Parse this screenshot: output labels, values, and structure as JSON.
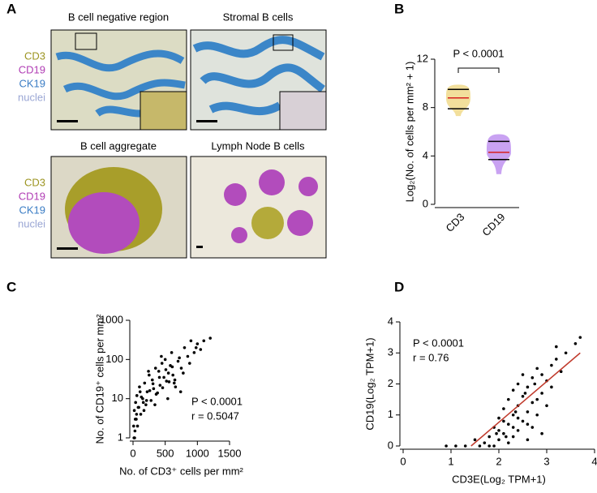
{
  "panel_labels": [
    "A",
    "B",
    "C",
    "D"
  ],
  "panel_a": {
    "tiles": [
      {
        "title": "B cell negative region"
      },
      {
        "title": "Stromal B cells"
      },
      {
        "title": "B cell aggregate"
      },
      {
        "title": "Lymph Node B cells"
      }
    ],
    "legends": [
      {
        "items": [
          {
            "text": "CD3",
            "color": "#9c9420"
          },
          {
            "text": "CD19",
            "color": "#b03cb4"
          },
          {
            "text": "CK19",
            "color": "#3a7cc4"
          },
          {
            "text": "nuclei",
            "color": "#9aa6d4"
          }
        ]
      },
      {
        "items": [
          {
            "text": "CD3",
            "color": "#9c9420"
          },
          {
            "text": "CD19",
            "color": "#b03cb4"
          },
          {
            "text": "CK19",
            "color": "#3a7cc4"
          },
          {
            "text": "nuclei",
            "color": "#9aa6d4"
          }
        ]
      }
    ]
  },
  "chart_data": [
    {
      "type": "violin",
      "ylabel": "Log₂(No. of cells per mm² + 1)",
      "annotation": "P < 0.0001",
      "categories": [
        "CD3",
        "CD19"
      ],
      "series": [
        {
          "color": "#f2df9c",
          "min": 7.3,
          "q1": 7.9,
          "median": 8.8,
          "q3": 9.5,
          "max": 9.9
        },
        {
          "color": "#c9a2f2",
          "min": 2.5,
          "q1": 3.7,
          "median": 4.3,
          "q3": 5.2,
          "max": 5.8
        }
      ],
      "median_color": "#d62020",
      "ylim": [
        0,
        12
      ],
      "yticks": [
        0,
        4,
        8,
        12
      ]
    },
    {
      "type": "scatter",
      "log_y": true,
      "xlabel": "No. of CD3⁺ cells per mm²",
      "ylabel": "No. of CD19⁺ cells per mm²",
      "annotations": [
        "P < 0.0001",
        "r = 0.5047"
      ],
      "color": "#000000",
      "x": [
        10,
        20,
        30,
        40,
        50,
        60,
        80,
        100,
        120,
        150,
        180,
        200,
        220,
        250,
        280,
        300,
        320,
        350,
        380,
        400,
        420,
        450,
        480,
        500,
        520,
        550,
        580,
        600,
        620,
        650,
        700,
        750,
        800,
        850,
        900,
        950,
        1000,
        1050,
        1100,
        1200,
        15,
        35,
        70,
        90,
        130,
        170,
        210,
        260,
        310,
        360,
        410,
        460,
        510,
        560,
        610,
        660,
        720,
        780,
        880,
        980,
        25,
        55,
        110,
        160,
        240,
        340,
        440,
        540,
        640,
        740
      ],
      "values": [
        2,
        5,
        1.5,
        8,
        3,
        12,
        6,
        20,
        4,
        10,
        25,
        7,
        15,
        40,
        9,
        30,
        18,
        60,
        14,
        50,
        22,
        80,
        35,
        100,
        28,
        45,
        70,
        150,
        40,
        30,
        90,
        60,
        200,
        120,
        300,
        150,
        250,
        180,
        300,
        350,
        1,
        3,
        2,
        6,
        11,
        5,
        9,
        16,
        24,
        13,
        35,
        19,
        55,
        27,
        65,
        20,
        110,
        45,
        80,
        200,
        1,
        4,
        15,
        8,
        50,
        7,
        120,
        10,
        25,
        15
      ],
      "xlim": [
        0,
        1500
      ],
      "xticks": [
        0,
        500,
        1000,
        1500
      ],
      "ylim": [
        1,
        1000
      ],
      "yticks": [
        1,
        10,
        100,
        1000
      ]
    },
    {
      "type": "scatter",
      "xlabel": "CD3E(Log₂ TPM+1)",
      "ylabel": "CD19(Log₂ TPM+1)",
      "annotations": [
        "P < 0.0001",
        "r = 0.76"
      ],
      "color": "#000000",
      "x": [
        0.9,
        1.1,
        1.3,
        1.6,
        1.7,
        1.8,
        1.9,
        1.9,
        2.0,
        2.0,
        2.1,
        2.1,
        2.2,
        2.2,
        2.2,
        2.3,
        2.3,
        2.3,
        2.4,
        2.4,
        2.4,
        2.5,
        2.5,
        2.5,
        2.6,
        2.6,
        2.6,
        2.7,
        2.7,
        2.7,
        2.8,
        2.8,
        2.9,
        2.9,
        3.0,
        3.0,
        3.1,
        3.2,
        3.3,
        3.4,
        3.6,
        3.7,
        1.5,
        1.8,
        2.0,
        2.1,
        2.3,
        2.4,
        2.6,
        2.8,
        2.9,
        3.1,
        1.95,
        2.15,
        2.35,
        2.55,
        2.75,
        3.2
      ],
      "values": [
        0,
        0,
        0,
        0,
        0.1,
        0.3,
        0,
        0.6,
        0.2,
        0.9,
        0.4,
        1.2,
        0.1,
        0.7,
        1.5,
        0.3,
        1.0,
        1.8,
        0.5,
        1.3,
        2.0,
        0.8,
        1.6,
        2.3,
        0.2,
        1.1,
        1.9,
        0.6,
        1.4,
        2.2,
        1.0,
        2.5,
        1.7,
        0.4,
        2.1,
        1.3,
        2.6,
        2.8,
        2.4,
        3.0,
        3.3,
        3.5,
        0.2,
        0,
        0.5,
        0.8,
        0.6,
        0.9,
        0.7,
        1.5,
        2.3,
        1.9,
        0.4,
        0.3,
        1.1,
        1.7,
        2.0,
        3.2
      ],
      "fit": {
        "x": [
          1.42,
          3.7
        ],
        "y": [
          0,
          3
        ],
        "color": "#c0392b"
      },
      "xlim": [
        0,
        4
      ],
      "xticks": [
        0,
        1,
        2,
        3,
        4
      ],
      "ylim": [
        0,
        4
      ],
      "yticks": [
        0,
        1,
        2,
        3,
        4
      ]
    }
  ]
}
